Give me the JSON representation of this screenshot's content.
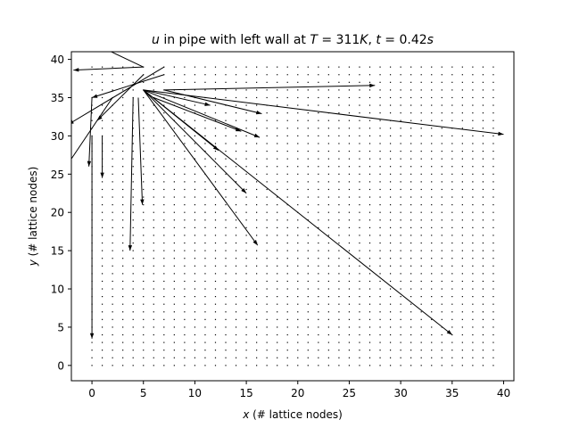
{
  "chart_data": {
    "type": "quiver",
    "title": {
      "parts": [
        {
          "text": "u",
          "italic": true
        },
        {
          "text": " in pipe with left wall at ",
          "italic": false
        },
        {
          "text": "T",
          "italic": true
        },
        {
          "text": " = 311",
          "italic": false
        },
        {
          "text": "K",
          "italic": true
        },
        {
          "text": ", ",
          "italic": false
        },
        {
          "text": "t",
          "italic": true
        },
        {
          "text": " = 0.42",
          "italic": false
        },
        {
          "text": "s",
          "italic": true
        }
      ]
    },
    "xlabel": {
      "var": "x",
      "rest": " (# lattice nodes)"
    },
    "ylabel": {
      "var": "y",
      "rest": " (# lattice nodes)"
    },
    "xlim": [
      -2,
      41
    ],
    "ylim": [
      -2,
      41
    ],
    "xticks": [
      0,
      5,
      10,
      15,
      20,
      25,
      30,
      35,
      40
    ],
    "yticks": [
      0,
      5,
      10,
      15,
      20,
      25,
      30,
      35,
      40
    ],
    "grid": false,
    "legend": "none",
    "arrow_color": "#000000",
    "field_grid": {
      "x_start": 0,
      "x_end": 39,
      "y_start": 0,
      "y_end": 39,
      "step": 1
    },
    "vectors": [
      {
        "x": 0,
        "y": 35,
        "u": -0.3,
        "v": -9.0
      },
      {
        "x": 0,
        "y": 30,
        "u": 0.0,
        "v": -26.5
      },
      {
        "x": 1,
        "y": 30,
        "u": 0.0,
        "v": -5.5
      },
      {
        "x": 2,
        "y": 35,
        "u": -4.4,
        "v": -8.8
      },
      {
        "x": 4,
        "y": 35,
        "u": -0.3,
        "v": -20.0
      },
      {
        "x": 4.5,
        "y": 35,
        "u": 0.4,
        "v": -14.0
      },
      {
        "x": 5,
        "y": 36,
        "u": 7.3,
        "v": -7.9
      },
      {
        "x": 5,
        "y": 36,
        "u": 10.0,
        "v": -13.5
      },
      {
        "x": 5,
        "y": 36,
        "u": 11.1,
        "v": -20.3
      },
      {
        "x": 5,
        "y": 36,
        "u": 11.3,
        "v": -6.2
      },
      {
        "x": 7,
        "y": 36,
        "u": 20.5,
        "v": 0.6
      },
      {
        "x": 7,
        "y": 36,
        "u": 9.5,
        "v": -3.1
      },
      {
        "x": 5,
        "y": 36,
        "u": 6.5,
        "v": -2.0
      },
      {
        "x": 6,
        "y": 35,
        "u": 8.5,
        "v": -4.4
      },
      {
        "x": 5,
        "y": 36,
        "u": 35.0,
        "v": -5.8
      },
      {
        "x": 5,
        "y": 36,
        "u": 30.0,
        "v": -32.0
      },
      {
        "x": 5,
        "y": 38,
        "u": -4.5,
        "v": -6.0
      },
      {
        "x": 5,
        "y": 39,
        "u": -4.7,
        "v": 3.0
      },
      {
        "x": 7,
        "y": 39,
        "u": -9.3,
        "v": -7.5
      },
      {
        "x": 7,
        "y": 38,
        "u": -7.0,
        "v": -3.0
      },
      {
        "x": 5,
        "y": 39,
        "u": -6.8,
        "v": -0.4
      }
    ]
  }
}
